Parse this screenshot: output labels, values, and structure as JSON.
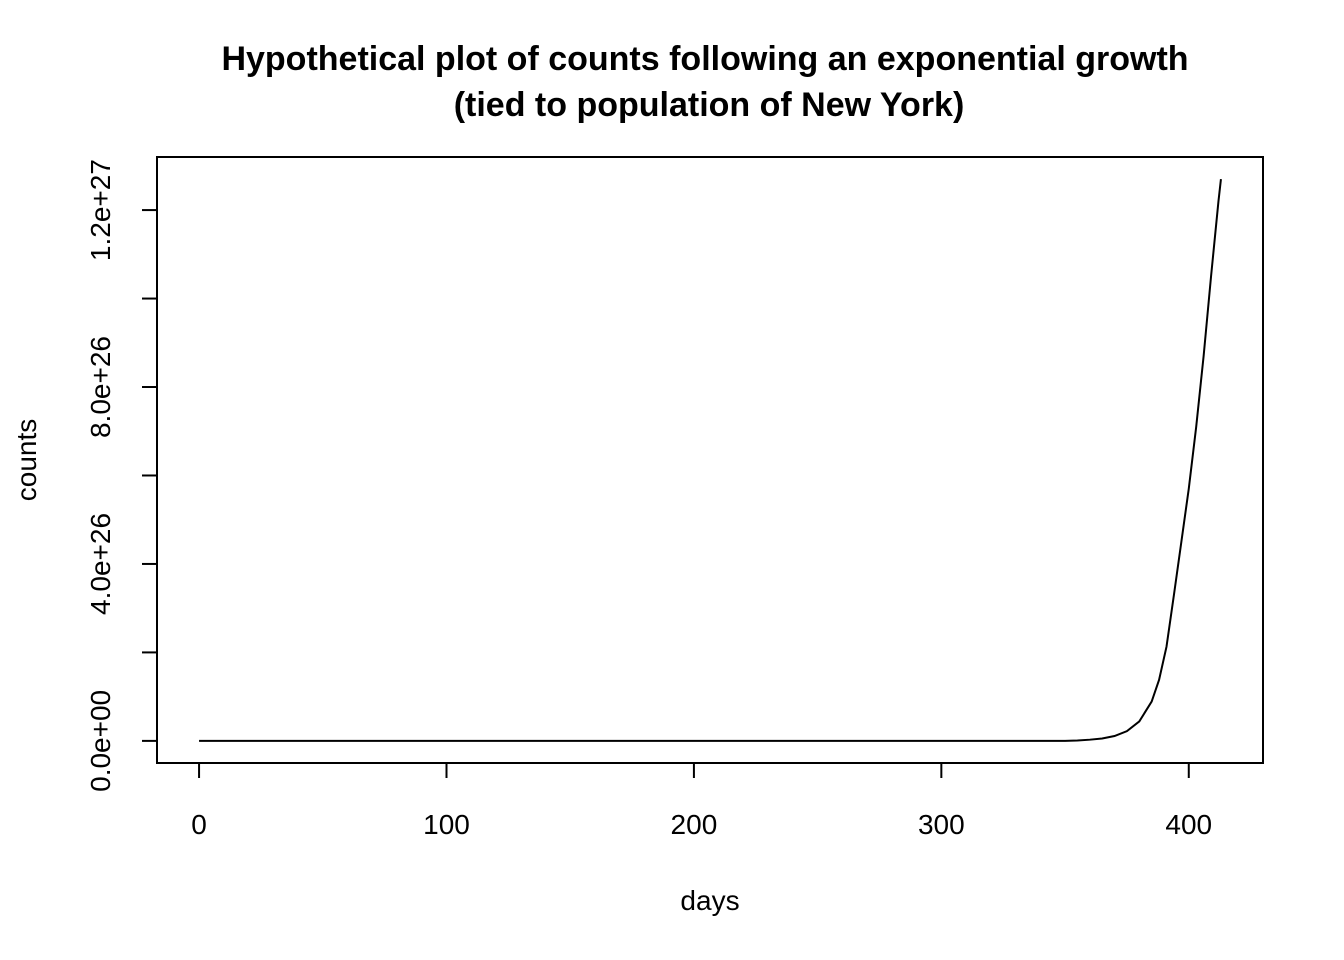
{
  "chart_data": {
    "type": "line",
    "title": "Hypothetical plot of counts following an exponential growth",
    "subtitle": "(tied to population of New York)",
    "xlabel": "days",
    "ylabel": "counts",
    "xlim": [
      -17,
      430
    ],
    "ylim": [
      -5e+25,
      1.32e+27
    ],
    "x_ticks": [
      0,
      100,
      200,
      300,
      400
    ],
    "x_tick_labels": [
      "0",
      "100",
      "200",
      "300",
      "400"
    ],
    "y_ticks": [
      0,
      2e+26,
      4e+26,
      6e+26,
      8e+26,
      1e+27,
      1.2e+27
    ],
    "y_tick_labels": [
      "0.0e+00",
      "",
      "4.0e+26",
      "",
      "8.0e+26",
      "",
      "1.2e+27"
    ],
    "grid": false,
    "series": [
      {
        "x": [
          0,
          50,
          100,
          150,
          200,
          250,
          300,
          320,
          340,
          350,
          355,
          360,
          365,
          370,
          375,
          380,
          385,
          388,
          391,
          394,
          397,
          400,
          403,
          406,
          409,
          412,
          413
        ],
        "values": [
          1,
          11.0,
          130.0,
          1500.0,
          17000.0,
          190000.0,
          2200000.0,
          40000000000.0,
          8000000000000000.0,
          1.7e+22,
          9e+23,
          2.7e+24,
          5.4e+24,
          1.1e+25,
          2.2e+25,
          4.4e+25,
          8.9e+25,
          1.38e+26,
          2.13e+26,
          3.3e+26,
          4.5e+26,
          5.7e+26,
          7.1e+26,
          8.7e+26,
          1.05e+27,
          1.22e+27,
          1.27e+27
        ]
      }
    ]
  }
}
